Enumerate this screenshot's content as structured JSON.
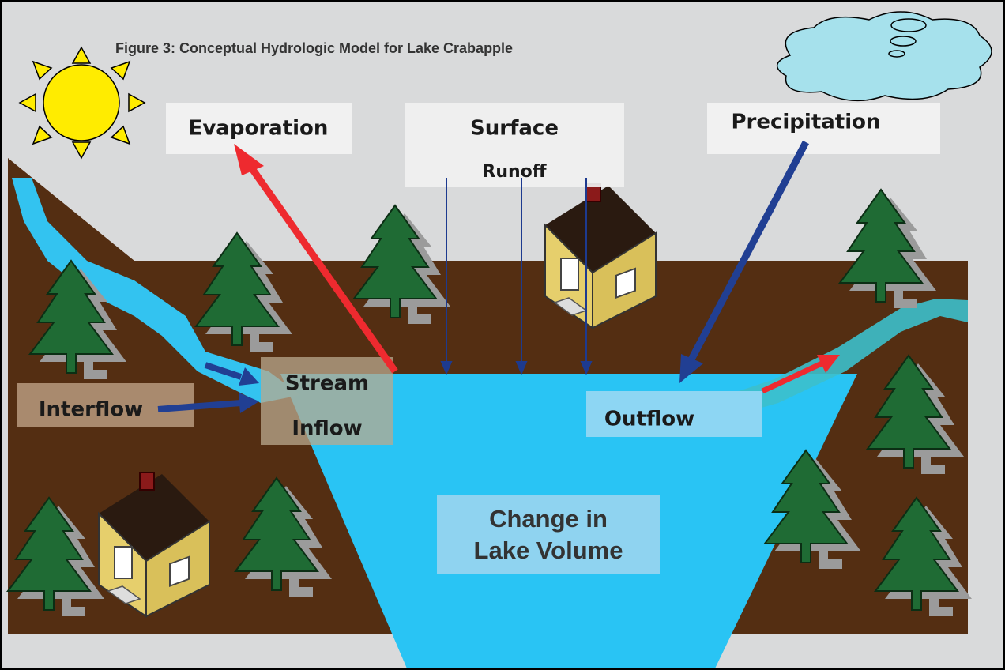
{
  "title": "Figure 3:  Conceptual Hydrologic Model for Lake Crabapple",
  "labels": {
    "evaporation": "Evaporation",
    "surface_runoff": [
      "Surface",
      "Runoff"
    ],
    "precipitation": "Precipitation",
    "stream_inflow": [
      "Stream",
      "Inflow"
    ],
    "interflow": "Interflow",
    "outflow": "Outflow",
    "lake_volume": [
      "Change in",
      "Lake Volume"
    ]
  }
}
